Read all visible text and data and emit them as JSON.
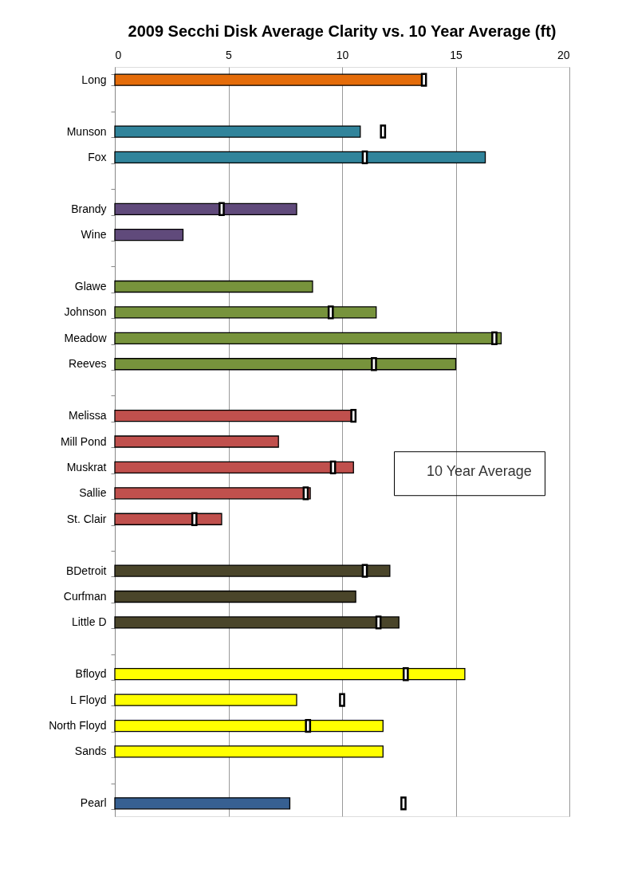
{
  "chart_data": {
    "type": "bar",
    "orientation": "horizontal",
    "title": "2009 Secchi Disk Average Clarity vs.  10 Year Average (ft)",
    "categories": [
      "Long",
      null,
      "Munson",
      "Fox",
      null,
      "Brandy",
      "Wine",
      null,
      "Glawe",
      "Johnson",
      "Meadow",
      "Reeves",
      null,
      "Melissa",
      "Mill Pond",
      "Muskrat",
      "Sallie",
      "St. Clair",
      null,
      "BDetroit",
      "Curfman",
      "Little D",
      null,
      "Bfloyd",
      "L Floyd",
      "North Floyd",
      "Sands",
      null,
      "Pearl"
    ],
    "series": [
      {
        "values": [
          13.5,
          null,
          10.8,
          16.3,
          null,
          8.0,
          3.0,
          null,
          8.7,
          11.5,
          17.0,
          15.0,
          null,
          10.4,
          7.2,
          10.5,
          8.6,
          4.7,
          null,
          12.1,
          10.6,
          12.5,
          null,
          15.4,
          8.0,
          11.8,
          11.8,
          null,
          7.7
        ],
        "colors": [
          "#e46c0a",
          null,
          "#31849b",
          "#31849b",
          null,
          "#604a7b",
          "#604a7b",
          null,
          "#77933c",
          "#77933c",
          "#77933c",
          "#77933c",
          null,
          "#c0504d",
          "#c0504d",
          "#c0504d",
          "#c0504d",
          "#c0504d",
          null,
          "#4a452a",
          "#4a452a",
          "#4a452a",
          null,
          "#ffff00",
          "#ffff00",
          "#ffff00",
          "#ffff00",
          null,
          "#376092"
        ]
      },
      {
        "type": "scatter",
        "name": "10 Year Average",
        "color": "#ffffff",
        "marker": "square",
        "values": [
          13.6,
          null,
          11.8,
          11.0,
          null,
          4.7,
          null,
          null,
          null,
          9.5,
          16.7,
          11.4,
          null,
          10.5,
          null,
          9.6,
          8.4,
          3.5,
          null,
          11.0,
          null,
          11.6,
          null,
          12.8,
          10.0,
          8.5,
          null,
          null,
          12.7
        ]
      }
    ],
    "xlim": [
      0,
      20
    ],
    "xticks": [
      0,
      5,
      10,
      15,
      20
    ],
    "grid": "x",
    "legend": "right"
  }
}
